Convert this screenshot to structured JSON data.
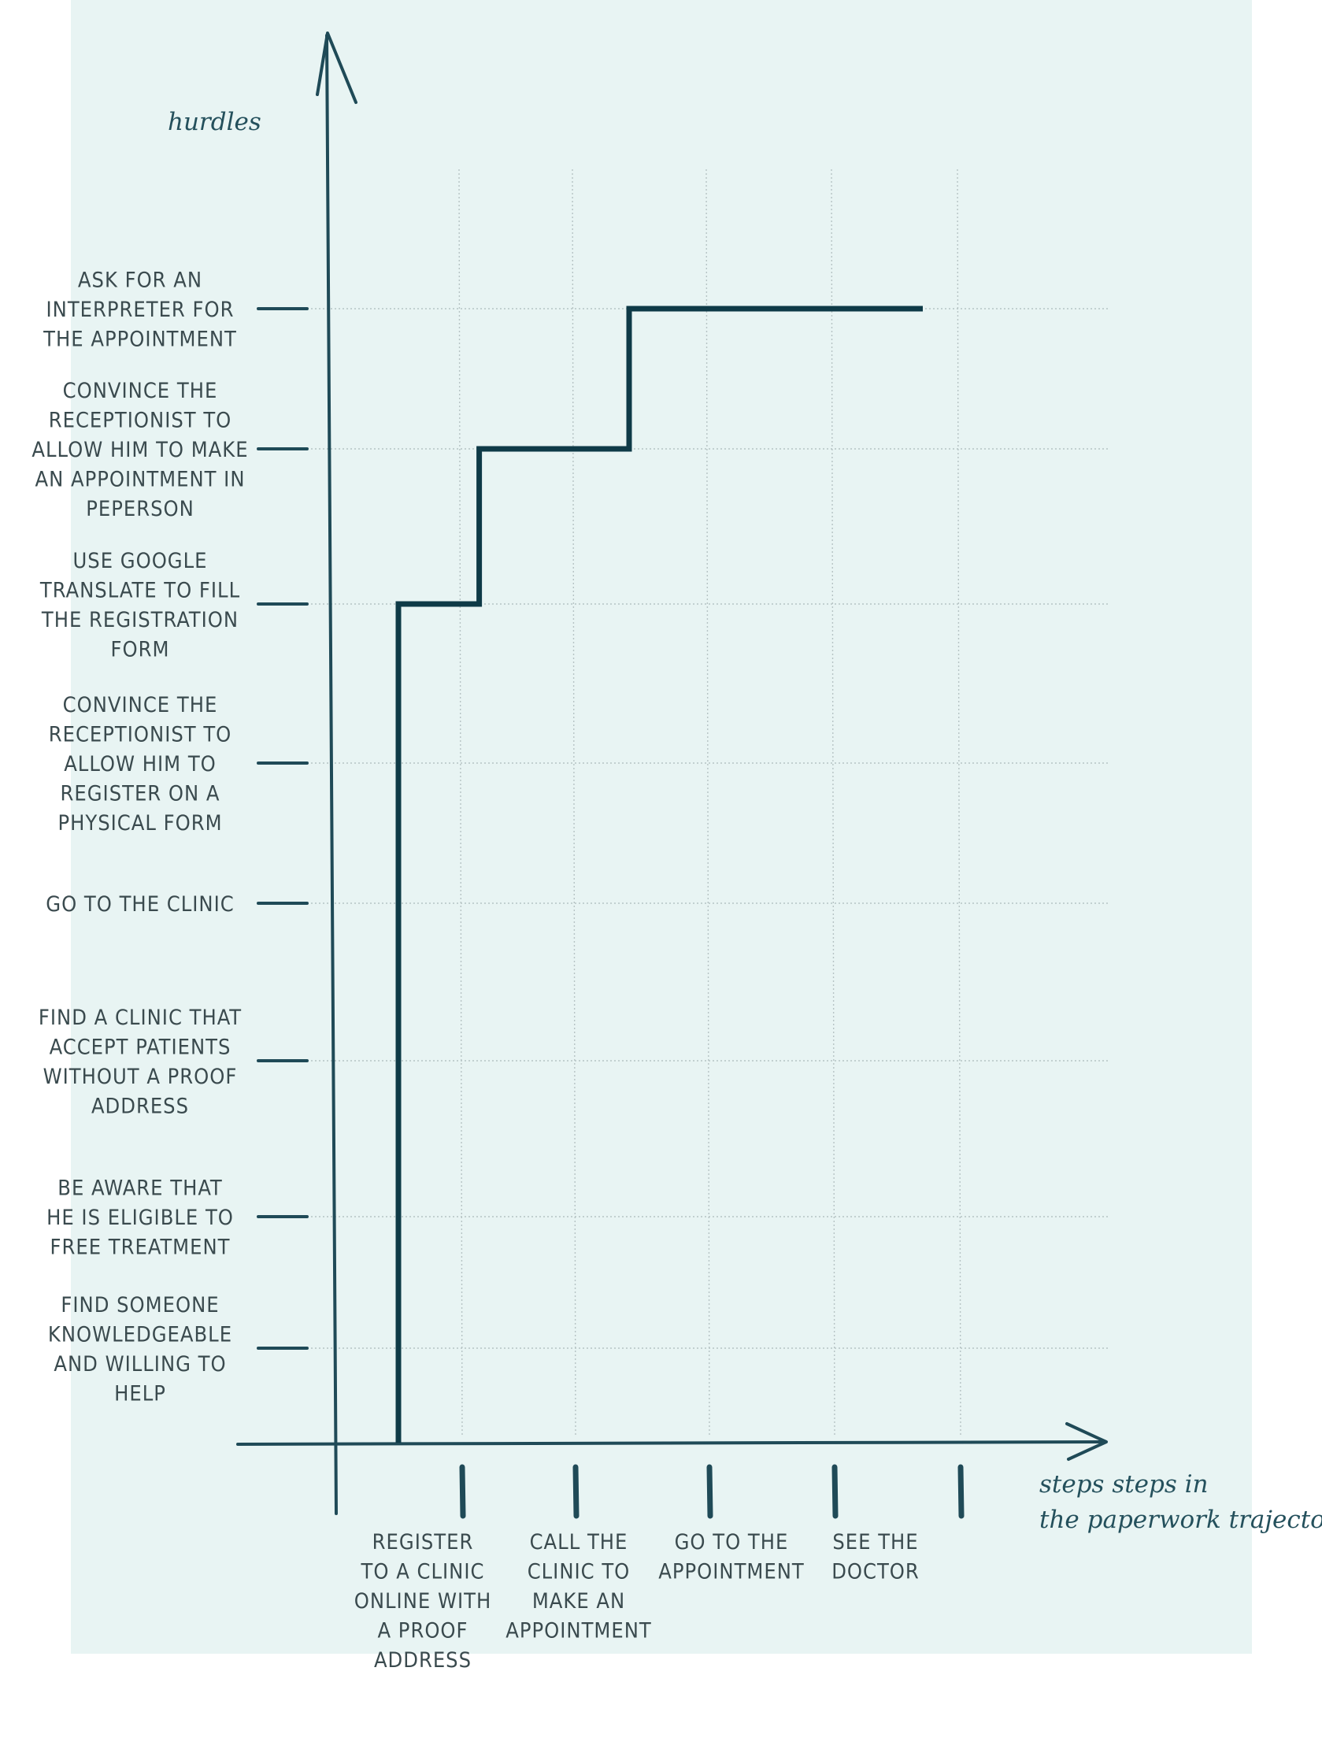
{
  "chart_data": {
    "type": "line",
    "ylabel": "hurdles",
    "xlabel": "steps steps in the paperwork trajectory",
    "y_levels": [
      "FIND SOMEONE KNOWLEDGEABLE AND WILLING TO HELP",
      "BE AWARE THAT HE IS ELIGIBLE TO FREE TREATMENT",
      "FIND A CLINIC THAT ACCEPT PATIENTS WITHOUT A PROOF ADDRESS",
      "GO TO THE CLINIC",
      "CONVINCE THE RECEPTIONIST TO ALLOW HIM TO REGISTER ON A PHYSICAL FORM",
      "USE GOOGLE TRANSLATE TO FILL THE REGISTRATION FORM",
      "CONVINCE THE RECEPTIONIST TO ALLOW HIM TO MAKE AN APPOINTMENT IN PEPERSON",
      "ASK FOR AN INTERPRETER FOR THE APPOINTMENT"
    ],
    "y_label_lines": [
      [
        "FIND SOMEONE",
        "KNOWLEDGEABLE",
        "AND WILLING TO",
        "HELP"
      ],
      [
        "BE AWARE THAT",
        "HE IS ELIGIBLE TO",
        "FREE TREATMENT"
      ],
      [
        "FIND A CLINIC THAT",
        "ACCEPT PATIENTS",
        "WITHOUT A PROOF",
        "ADDRESS"
      ],
      [
        "GO TO THE CLINIC"
      ],
      [
        "CONVINCE THE",
        "RECEPTIONIST TO",
        "ALLOW HIM TO",
        "REGISTER ON A",
        "PHYSICAL FORM"
      ],
      [
        "USE GOOGLE",
        "TRANSLATE TO FILL",
        "THE REGISTRATION",
        "FORM"
      ],
      [
        "CONVINCE THE",
        "RECEPTIONIST TO",
        "ALLOW HIM TO MAKE",
        "AN APPOINTMENT IN",
        "PEPERSON"
      ],
      [
        "ASK FOR AN",
        "INTERPRETER FOR",
        "THE APPOINTMENT"
      ]
    ],
    "categories": [
      "REGISTER TO A CLINIC ONLINE WITH A PROOF ADDRESS",
      "CALL THE CLINIC TO MAKE AN APPOINTMENT",
      "GO TO THE APPOINTMENT",
      "SEE THE DOCTOR",
      ""
    ],
    "x_label_lines": [
      [
        "REGISTER",
        "TO A CLINIC",
        "ONLINE WITH",
        "A PROOF",
        "ADDRESS"
      ],
      [
        "CALL THE",
        "CLINIC TO",
        "MAKE AN",
        "APPOINTMENT"
      ],
      [
        "GO TO THE",
        "APPOINTMENT"
      ],
      [
        "SEE THE",
        "DOCTOR"
      ],
      []
    ],
    "series": [
      {
        "points": [
          {
            "x": 0.5,
            "y": 0
          },
          {
            "x": 0.5,
            "y": 6
          },
          {
            "x": 1.15,
            "y": 6
          },
          {
            "x": 1.15,
            "y": 7
          },
          {
            "x": 2.4,
            "y": 7
          },
          {
            "x": 2.4,
            "y": 8
          },
          {
            "x": 4.7,
            "y": 8
          }
        ]
      }
    ],
    "xlim": [
      0,
      6
    ],
    "ylim": [
      0,
      9
    ],
    "grid": true,
    "colors": {
      "background": "#e8f4f3",
      "axis": "#1f4a57",
      "series": "#0e3a47",
      "text": "#3a4a4e"
    }
  }
}
